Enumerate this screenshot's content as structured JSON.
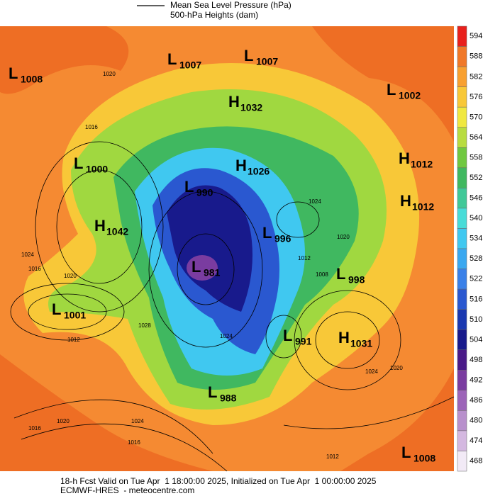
{
  "header": {
    "lines": [
      "Mean Sea Level Pressure (hPa)",
      "500-hPa Heights (dam)"
    ]
  },
  "colorbar": {
    "ticks": [
      594,
      588,
      582,
      576,
      570,
      564,
      558,
      552,
      546,
      540,
      534,
      528,
      522,
      516,
      510,
      504,
      498,
      492,
      486,
      480,
      474,
      468
    ],
    "colors": [
      "#e8201c",
      "#f07828",
      "#f8a030",
      "#f8c838",
      "#f0e840",
      "#b8dc40",
      "#70c840",
      "#40b860",
      "#40c898",
      "#48dcd8",
      "#40c8f0",
      "#3aa8f0",
      "#3a80e8",
      "#2a58d0",
      "#1a38b0",
      "#181a8c",
      "#4a1a88",
      "#7a3ca0",
      "#9c64b8",
      "#b890cc",
      "#d4b8e0",
      "#f2eaf6"
    ]
  },
  "centers": [
    {
      "type": "L",
      "value": 1008
    },
    {
      "type": "L",
      "value": 1007
    },
    {
      "type": "L",
      "value": 1007
    },
    {
      "type": "L",
      "value": 1002
    },
    {
      "type": "H",
      "value": 1032
    },
    {
      "type": "L",
      "value": 1000
    },
    {
      "type": "H",
      "value": 1026
    },
    {
      "type": "H",
      "value": 1012
    },
    {
      "type": "H",
      "value": 1012
    },
    {
      "type": "L",
      "value": 990
    },
    {
      "type": "H",
      "value": 1042
    },
    {
      "type": "L",
      "value": 996
    },
    {
      "type": "L",
      "value": 998
    },
    {
      "type": "L",
      "value": 981
    },
    {
      "type": "L",
      "value": 1001
    },
    {
      "type": "L",
      "value": 991
    },
    {
      "type": "H",
      "value": 1031
    },
    {
      "type": "L",
      "value": 988
    },
    {
      "type": "L",
      "value": 1008
    }
  ],
  "isobar_labels": [
    1016,
    1020,
    1024,
    1016,
    1020,
    1012,
    1024,
    1016,
    1020,
    1024,
    1012,
    1028,
    1024,
    1020,
    1016,
    1020,
    1024,
    1008,
    1012
  ],
  "footer": {
    "lines": [
      "18-h Fcst Valid on Tue Apr  1 18:00:00 2025, Initialized on Tue Apr  1 00:00:00 2025",
      "ECMWF-HRES  - meteocentre.com"
    ]
  }
}
